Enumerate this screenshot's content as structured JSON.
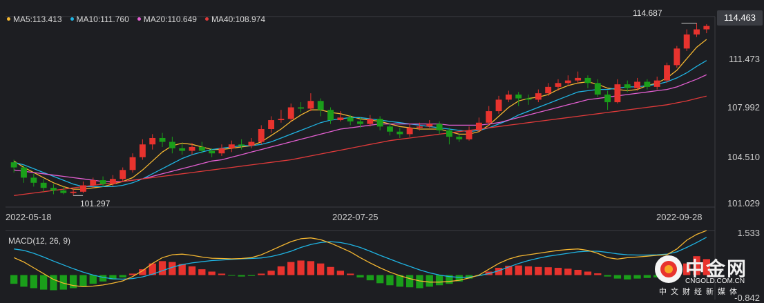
{
  "legend": [
    {
      "label": "MA5:113.413",
      "color": "#f5b731"
    },
    {
      "label": "MA10:111.760",
      "color": "#1fb4e3"
    },
    {
      "label": "MA20:110.649",
      "color": "#e45fd2"
    },
    {
      "label": "MA40:108.974",
      "color": "#e03a3a"
    }
  ],
  "macd_label": "MACD(12, 26, 9)",
  "last_price": "114.463",
  "high_marker": "114.687",
  "low_marker": "101.297",
  "y_ticks": [
    "111.473",
    "107.992",
    "104.510",
    "101.029"
  ],
  "macd_ticks": [
    "1.533",
    "-0.842"
  ],
  "x_ticks": [
    "2022-05-18",
    "2022-07-25",
    "2022-09-28"
  ],
  "watermark": {
    "cn": "中金网",
    "en": "CNGOLD.COM.CN",
    "sub": "中文财经新媒体"
  },
  "chart_data": {
    "type": "candlestick",
    "up_color": "#e8332e",
    "down_color": "#1a9e1a",
    "ylim": [
      100.3,
      115.2
    ],
    "macd_ylim": [
      -0.842,
      1.533
    ],
    "candles": [
      [
        103.8,
        103.4,
        104.0,
        103.0
      ],
      [
        103.4,
        102.6,
        103.6,
        102.2
      ],
      [
        102.6,
        102.2,
        102.9,
        101.9
      ],
      [
        102.2,
        101.8,
        102.5,
        101.5
      ],
      [
        101.8,
        101.6,
        102.1,
        101.3
      ],
      [
        101.6,
        101.4,
        101.9,
        101.3
      ],
      [
        101.4,
        101.5,
        101.7,
        101.2
      ],
      [
        101.5,
        102.0,
        102.3,
        101.4
      ],
      [
        102.0,
        102.4,
        102.6,
        101.8
      ],
      [
        102.4,
        102.1,
        102.7,
        101.9
      ],
      [
        102.1,
        102.5,
        102.8,
        101.9
      ],
      [
        102.5,
        103.2,
        103.4,
        102.3
      ],
      [
        103.2,
        104.2,
        104.5,
        103.0
      ],
      [
        104.2,
        105.2,
        105.6,
        104.0
      ],
      [
        105.2,
        105.7,
        106.0,
        104.8
      ],
      [
        105.7,
        105.4,
        106.1,
        105.0
      ],
      [
        105.4,
        104.9,
        105.8,
        104.5
      ],
      [
        104.9,
        104.7,
        105.3,
        104.4
      ],
      [
        104.7,
        105.0,
        105.3,
        104.4
      ],
      [
        105.0,
        104.7,
        105.4,
        104.5
      ],
      [
        104.7,
        104.5,
        104.9,
        104.2
      ],
      [
        104.5,
        104.9,
        105.2,
        104.3
      ],
      [
        104.9,
        105.2,
        105.5,
        104.6
      ],
      [
        105.2,
        105.1,
        105.6,
        104.8
      ],
      [
        105.1,
        105.4,
        105.7,
        104.9
      ],
      [
        105.4,
        106.4,
        106.7,
        105.2
      ],
      [
        106.4,
        107.1,
        107.4,
        106.1
      ],
      [
        107.1,
        107.2,
        107.9,
        106.9
      ],
      [
        107.2,
        108.1,
        108.4,
        107.0
      ],
      [
        108.1,
        108.0,
        108.5,
        107.7
      ],
      [
        108.0,
        108.6,
        109.2,
        107.8
      ],
      [
        108.6,
        107.9,
        108.8,
        107.4
      ],
      [
        107.9,
        107.1,
        108.1,
        106.8
      ],
      [
        107.1,
        107.3,
        107.8,
        107.0
      ],
      [
        107.3,
        107.0,
        107.5,
        106.7
      ],
      [
        107.0,
        106.8,
        107.3,
        106.5
      ],
      [
        106.8,
        107.2,
        107.5,
        106.6
      ],
      [
        107.2,
        106.6,
        107.4,
        106.3
      ],
      [
        106.6,
        106.2,
        106.9,
        105.9
      ],
      [
        106.2,
        106.0,
        106.5,
        105.7
      ],
      [
        106.0,
        106.5,
        106.8,
        105.8
      ],
      [
        106.5,
        106.6,
        106.9,
        106.3
      ],
      [
        106.6,
        106.8,
        107.1,
        106.5
      ],
      [
        106.8,
        106.3,
        107.0,
        106.0
      ],
      [
        106.3,
        105.8,
        106.5,
        105.2
      ],
      [
        105.8,
        105.6,
        106.0,
        105.4
      ],
      [
        105.6,
        106.3,
        106.6,
        105.5
      ],
      [
        106.3,
        106.9,
        107.3,
        106.2
      ],
      [
        106.9,
        107.8,
        108.2,
        106.7
      ],
      [
        107.8,
        108.7,
        109.0,
        107.6
      ],
      [
        108.7,
        109.1,
        109.4,
        108.5
      ],
      [
        109.1,
        108.8,
        109.3,
        108.2
      ],
      [
        108.8,
        108.7,
        109.1,
        108.3
      ],
      [
        108.7,
        109.2,
        109.5,
        108.5
      ],
      [
        109.2,
        109.7,
        110.0,
        109.0
      ],
      [
        109.7,
        110.0,
        110.3,
        109.4
      ],
      [
        110.0,
        110.2,
        110.6,
        109.8
      ],
      [
        110.2,
        110.4,
        110.9,
        110.0
      ],
      [
        110.4,
        110.0,
        110.6,
        109.6
      ],
      [
        110.0,
        109.1,
        110.3,
        108.9
      ],
      [
        109.1,
        108.5,
        109.4,
        107.9
      ],
      [
        108.5,
        109.9,
        110.3,
        108.4
      ],
      [
        109.9,
        109.6,
        110.2,
        109.3
      ],
      [
        109.6,
        110.1,
        110.4,
        109.4
      ],
      [
        110.1,
        109.7,
        110.3,
        109.5
      ],
      [
        109.7,
        110.2,
        110.5,
        109.5
      ],
      [
        110.2,
        111.4,
        111.6,
        110.0
      ],
      [
        111.4,
        112.7,
        112.9,
        111.2
      ],
      [
        112.7,
        113.8,
        114.2,
        112.5
      ],
      [
        113.8,
        114.2,
        114.687,
        113.6
      ],
      [
        114.2,
        114.463,
        114.6,
        113.9
      ]
    ],
    "ma": [
      {
        "name": "MA5",
        "color": "#f5b731",
        "values": [
          103.9,
          103.4,
          103.0,
          102.6,
          102.2,
          101.9,
          101.7,
          101.7,
          101.8,
          101.9,
          102.1,
          102.3,
          102.6,
          103.2,
          103.9,
          104.6,
          105.1,
          105.3,
          105.2,
          105.0,
          104.8,
          104.8,
          104.9,
          105.0,
          105.1,
          105.4,
          105.9,
          106.4,
          107.0,
          107.5,
          107.9,
          107.9,
          107.7,
          107.6,
          107.4,
          107.2,
          107.1,
          107.0,
          106.8,
          106.6,
          106.5,
          106.4,
          106.4,
          106.4,
          106.2,
          106.0,
          106.0,
          106.2,
          106.7,
          107.4,
          108.1,
          108.6,
          108.8,
          108.9,
          109.1,
          109.5,
          109.8,
          110.0,
          110.1,
          109.9,
          109.6,
          109.5,
          109.4,
          109.5,
          109.8,
          110.0,
          110.4,
          111.0,
          111.9,
          112.8,
          113.413
        ]
      },
      {
        "name": "MA10",
        "color": "#1fb4e3",
        "values": [
          103.8,
          103.6,
          103.3,
          103.0,
          102.7,
          102.4,
          102.1,
          101.9,
          101.9,
          101.9,
          101.9,
          102.0,
          102.2,
          102.5,
          102.9,
          103.3,
          103.7,
          104.1,
          104.4,
          104.6,
          104.8,
          104.9,
          105.0,
          105.1,
          105.1,
          105.2,
          105.4,
          105.7,
          106.0,
          106.3,
          106.6,
          106.9,
          107.1,
          107.2,
          107.3,
          107.3,
          107.2,
          107.1,
          107.0,
          106.9,
          106.8,
          106.7,
          106.6,
          106.5,
          106.4,
          106.3,
          106.2,
          106.3,
          106.5,
          106.8,
          107.1,
          107.5,
          107.8,
          108.1,
          108.4,
          108.7,
          109.0,
          109.3,
          109.4,
          109.5,
          109.5,
          109.6,
          109.7,
          109.7,
          109.8,
          109.9,
          110.1,
          110.4,
          110.8,
          111.3,
          111.76
        ]
      },
      {
        "name": "MA20",
        "color": "#e45fd2",
        "values": [
          103.2,
          103.1,
          103.0,
          102.9,
          102.8,
          102.7,
          102.6,
          102.5,
          102.4,
          102.3,
          102.3,
          102.3,
          102.4,
          102.5,
          102.7,
          102.9,
          103.1,
          103.3,
          103.5,
          103.7,
          103.9,
          104.0,
          104.2,
          104.4,
          104.6,
          104.8,
          105.0,
          105.2,
          105.4,
          105.6,
          105.8,
          106.0,
          106.2,
          106.4,
          106.5,
          106.6,
          106.7,
          106.8,
          106.8,
          106.8,
          106.8,
          106.8,
          106.8,
          106.8,
          106.7,
          106.7,
          106.7,
          106.7,
          106.8,
          106.9,
          107.1,
          107.3,
          107.5,
          107.7,
          107.9,
          108.1,
          108.3,
          108.5,
          108.7,
          108.8,
          108.9,
          109.0,
          109.1,
          109.2,
          109.3,
          109.4,
          109.5,
          109.7,
          110.0,
          110.3,
          110.649
        ]
      },
      {
        "name": "MA40",
        "color": "#e03a3a",
        "values": [
          101.2,
          101.3,
          101.4,
          101.5,
          101.6,
          101.7,
          101.8,
          101.9,
          102.0,
          102.1,
          102.2,
          102.3,
          102.4,
          102.5,
          102.6,
          102.7,
          102.8,
          102.9,
          103.0,
          103.1,
          103.2,
          103.3,
          103.4,
          103.5,
          103.6,
          103.7,
          103.8,
          103.9,
          104.0,
          104.15,
          104.3,
          104.45,
          104.6,
          104.75,
          104.9,
          105.05,
          105.2,
          105.35,
          105.5,
          105.6,
          105.7,
          105.8,
          105.9,
          106.0,
          106.1,
          106.2,
          106.3,
          106.4,
          106.5,
          106.6,
          106.7,
          106.8,
          106.9,
          107.0,
          107.1,
          107.2,
          107.3,
          107.4,
          107.5,
          107.6,
          107.7,
          107.8,
          107.9,
          108.0,
          108.1,
          108.2,
          108.3,
          108.45,
          108.6,
          108.8,
          108.974
        ]
      }
    ],
    "macd": {
      "hist": [
        -0.3,
        -0.4,
        -0.45,
        -0.5,
        -0.52,
        -0.5,
        -0.45,
        -0.38,
        -0.3,
        -0.22,
        -0.15,
        -0.08,
        0.05,
        0.2,
        0.4,
        0.48,
        0.45,
        0.38,
        0.3,
        0.2,
        0.12,
        0.05,
        -0.02,
        -0.05,
        -0.03,
        0.05,
        0.15,
        0.3,
        0.45,
        0.5,
        0.48,
        0.4,
        0.28,
        0.15,
        0.05,
        -0.08,
        -0.18,
        -0.28,
        -0.35,
        -0.4,
        -0.42,
        -0.45,
        -0.4,
        -0.35,
        -0.3,
        -0.22,
        -0.12,
        -0.02,
        0.12,
        0.25,
        0.32,
        0.33,
        0.3,
        0.28,
        0.27,
        0.25,
        0.22,
        0.18,
        0.12,
        0.06,
        -0.05,
        -0.12,
        -0.15,
        -0.12,
        -0.1,
        -0.08,
        -0.05,
        0.15,
        0.4,
        0.65,
        0.55
      ],
      "dif": [
        0.6,
        0.45,
        0.25,
        0.05,
        -0.15,
        -0.28,
        -0.36,
        -0.4,
        -0.38,
        -0.34,
        -0.28,
        -0.2,
        -0.05,
        0.15,
        0.4,
        0.6,
        0.7,
        0.72,
        0.68,
        0.62,
        0.58,
        0.57,
        0.56,
        0.57,
        0.6,
        0.7,
        0.85,
        1.0,
        1.15,
        1.25,
        1.28,
        1.22,
        1.1,
        0.95,
        0.8,
        0.6,
        0.42,
        0.25,
        0.1,
        -0.02,
        -0.12,
        -0.2,
        -0.24,
        -0.24,
        -0.22,
        -0.18,
        -0.1,
        0.0,
        0.2,
        0.4,
        0.55,
        0.65,
        0.7,
        0.75,
        0.8,
        0.85,
        0.88,
        0.9,
        0.85,
        0.75,
        0.6,
        0.55,
        0.6,
        0.62,
        0.65,
        0.68,
        0.7,
        0.9,
        1.2,
        1.4,
        1.533
      ],
      "dea": [
        0.9,
        0.85,
        0.75,
        0.62,
        0.48,
        0.35,
        0.22,
        0.1,
        0.0,
        -0.08,
        -0.13,
        -0.14,
        -0.12,
        -0.06,
        0.03,
        0.15,
        0.27,
        0.36,
        0.42,
        0.46,
        0.5,
        0.52,
        0.54,
        0.56,
        0.57,
        0.59,
        0.64,
        0.72,
        0.82,
        0.95,
        1.05,
        1.12,
        1.15,
        1.12,
        1.05,
        0.95,
        0.82,
        0.68,
        0.55,
        0.42,
        0.3,
        0.18,
        0.08,
        0.0,
        -0.05,
        -0.08,
        -0.07,
        -0.02,
        0.05,
        0.15,
        0.28,
        0.4,
        0.5,
        0.58,
        0.65,
        0.7,
        0.75,
        0.8,
        0.82,
        0.82,
        0.78,
        0.73,
        0.7,
        0.69,
        0.69,
        0.7,
        0.72,
        0.8,
        0.95,
        1.12,
        1.3
      ]
    }
  }
}
